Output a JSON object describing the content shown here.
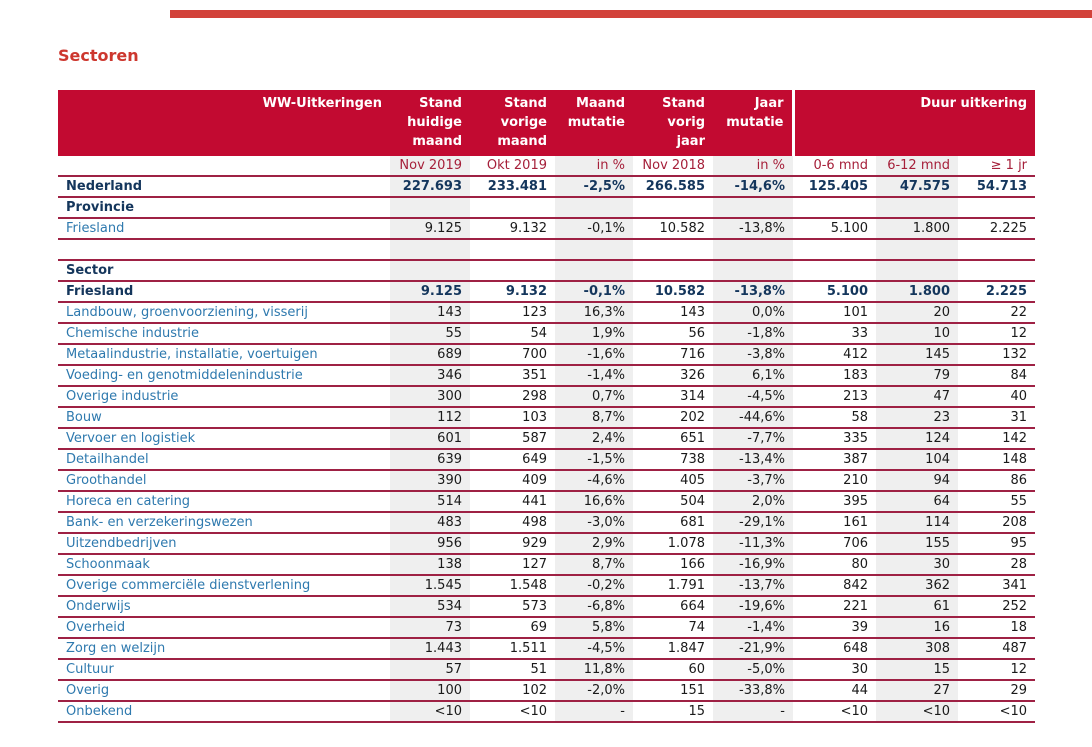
{
  "page": {
    "title": "Sectoren"
  },
  "colors": {
    "accent_bar_red": "#d2423a",
    "title_red": "#cd372e",
    "header_background_red": "#c20a31",
    "header_text": "#ffffff",
    "row_border_red": "#9e2144",
    "subheader_text_red": "#a6203a",
    "total_navy": "#14365c",
    "link_blue": "#2e79ae",
    "column_shade_gray": "#efefef",
    "value_text": "#1a1a1a"
  },
  "table": {
    "title": "WW-Uitkeringen",
    "columns": [
      "Stand huidige maand",
      "Stand vorige maand",
      "Maand mutatie",
      "Stand vorig jaar",
      "Jaar mutatie"
    ],
    "duur_group": "Duur uitkering",
    "subheader": [
      "Nov 2019",
      "Okt 2019",
      "in %",
      "Nov 2018",
      "in %",
      "0-6 mnd",
      "6-12 mnd",
      "≥ 1 jr"
    ],
    "rows": [
      {
        "label": "Nederland",
        "style": "total",
        "values": [
          "227.693",
          "233.481",
          "-2,5%",
          "266.585",
          "-14,6%",
          "125.405",
          "47.575",
          "54.713"
        ]
      },
      {
        "label": "Provincie",
        "style": "section",
        "values": []
      },
      {
        "label": "Friesland",
        "style": "sector",
        "values": [
          "9.125",
          "9.132",
          "-0,1%",
          "10.582",
          "-13,8%",
          "5.100",
          "1.800",
          "2.225"
        ]
      },
      {
        "label": "",
        "style": "blank",
        "values": []
      },
      {
        "label": "Sector",
        "style": "section",
        "values": []
      },
      {
        "label": "Friesland",
        "style": "total",
        "values": [
          "9.125",
          "9.132",
          "-0,1%",
          "10.582",
          "-13,8%",
          "5.100",
          "1.800",
          "2.225"
        ]
      },
      {
        "label": "Landbouw, groenvoorziening, visserij",
        "style": "sector",
        "values": [
          "143",
          "123",
          "16,3%",
          "143",
          "0,0%",
          "101",
          "20",
          "22"
        ]
      },
      {
        "label": "Chemische industrie",
        "style": "sector",
        "values": [
          "55",
          "54",
          "1,9%",
          "56",
          "-1,8%",
          "33",
          "10",
          "12"
        ]
      },
      {
        "label": "Metaalindustrie, installatie, voertuigen",
        "style": "sector",
        "values": [
          "689",
          "700",
          "-1,6%",
          "716",
          "-3,8%",
          "412",
          "145",
          "132"
        ]
      },
      {
        "label": "Voeding- en genotmiddelenindustrie",
        "style": "sector",
        "values": [
          "346",
          "351",
          "-1,4%",
          "326",
          "6,1%",
          "183",
          "79",
          "84"
        ]
      },
      {
        "label": "Overige industrie",
        "style": "sector",
        "values": [
          "300",
          "298",
          "0,7%",
          "314",
          "-4,5%",
          "213",
          "47",
          "40"
        ]
      },
      {
        "label": "Bouw",
        "style": "sector",
        "values": [
          "112",
          "103",
          "8,7%",
          "202",
          "-44,6%",
          "58",
          "23",
          "31"
        ]
      },
      {
        "label": "Vervoer en logistiek",
        "style": "sector",
        "values": [
          "601",
          "587",
          "2,4%",
          "651",
          "-7,7%",
          "335",
          "124",
          "142"
        ]
      },
      {
        "label": "Detailhandel",
        "style": "sector",
        "values": [
          "639",
          "649",
          "-1,5%",
          "738",
          "-13,4%",
          "387",
          "104",
          "148"
        ]
      },
      {
        "label": "Groothandel",
        "style": "sector",
        "values": [
          "390",
          "409",
          "-4,6%",
          "405",
          "-3,7%",
          "210",
          "94",
          "86"
        ]
      },
      {
        "label": "Horeca en catering",
        "style": "sector",
        "values": [
          "514",
          "441",
          "16,6%",
          "504",
          "2,0%",
          "395",
          "64",
          "55"
        ]
      },
      {
        "label": "Bank- en verzekeringswezen",
        "style": "sector",
        "values": [
          "483",
          "498",
          "-3,0%",
          "681",
          "-29,1%",
          "161",
          "114",
          "208"
        ]
      },
      {
        "label": "Uitzendbedrijven",
        "style": "sector",
        "values": [
          "956",
          "929",
          "2,9%",
          "1.078",
          "-11,3%",
          "706",
          "155",
          "95"
        ]
      },
      {
        "label": "Schoonmaak",
        "style": "sector",
        "values": [
          "138",
          "127",
          "8,7%",
          "166",
          "-16,9%",
          "80",
          "30",
          "28"
        ]
      },
      {
        "label": "Overige commerciële dienstverlening",
        "style": "sector",
        "values": [
          "1.545",
          "1.548",
          "-0,2%",
          "1.791",
          "-13,7%",
          "842",
          "362",
          "341"
        ]
      },
      {
        "label": "Onderwijs",
        "style": "sector",
        "values": [
          "534",
          "573",
          "-6,8%",
          "664",
          "-19,6%",
          "221",
          "61",
          "252"
        ]
      },
      {
        "label": "Overheid",
        "style": "sector",
        "values": [
          "73",
          "69",
          "5,8%",
          "74",
          "-1,4%",
          "39",
          "16",
          "18"
        ]
      },
      {
        "label": "Zorg en welzijn",
        "style": "sector",
        "values": [
          "1.443",
          "1.511",
          "-4,5%",
          "1.847",
          "-21,9%",
          "648",
          "308",
          "487"
        ]
      },
      {
        "label": "Cultuur",
        "style": "sector",
        "values": [
          "57",
          "51",
          "11,8%",
          "60",
          "-5,0%",
          "30",
          "15",
          "12"
        ]
      },
      {
        "label": "Overig",
        "style": "sector",
        "values": [
          "100",
          "102",
          "-2,0%",
          "151",
          "-33,8%",
          "44",
          "27",
          "29"
        ]
      },
      {
        "label": "Onbekend",
        "style": "sector",
        "values": [
          "<10",
          "<10",
          "-",
          "15",
          "-",
          "<10",
          "<10",
          "<10"
        ]
      }
    ]
  }
}
